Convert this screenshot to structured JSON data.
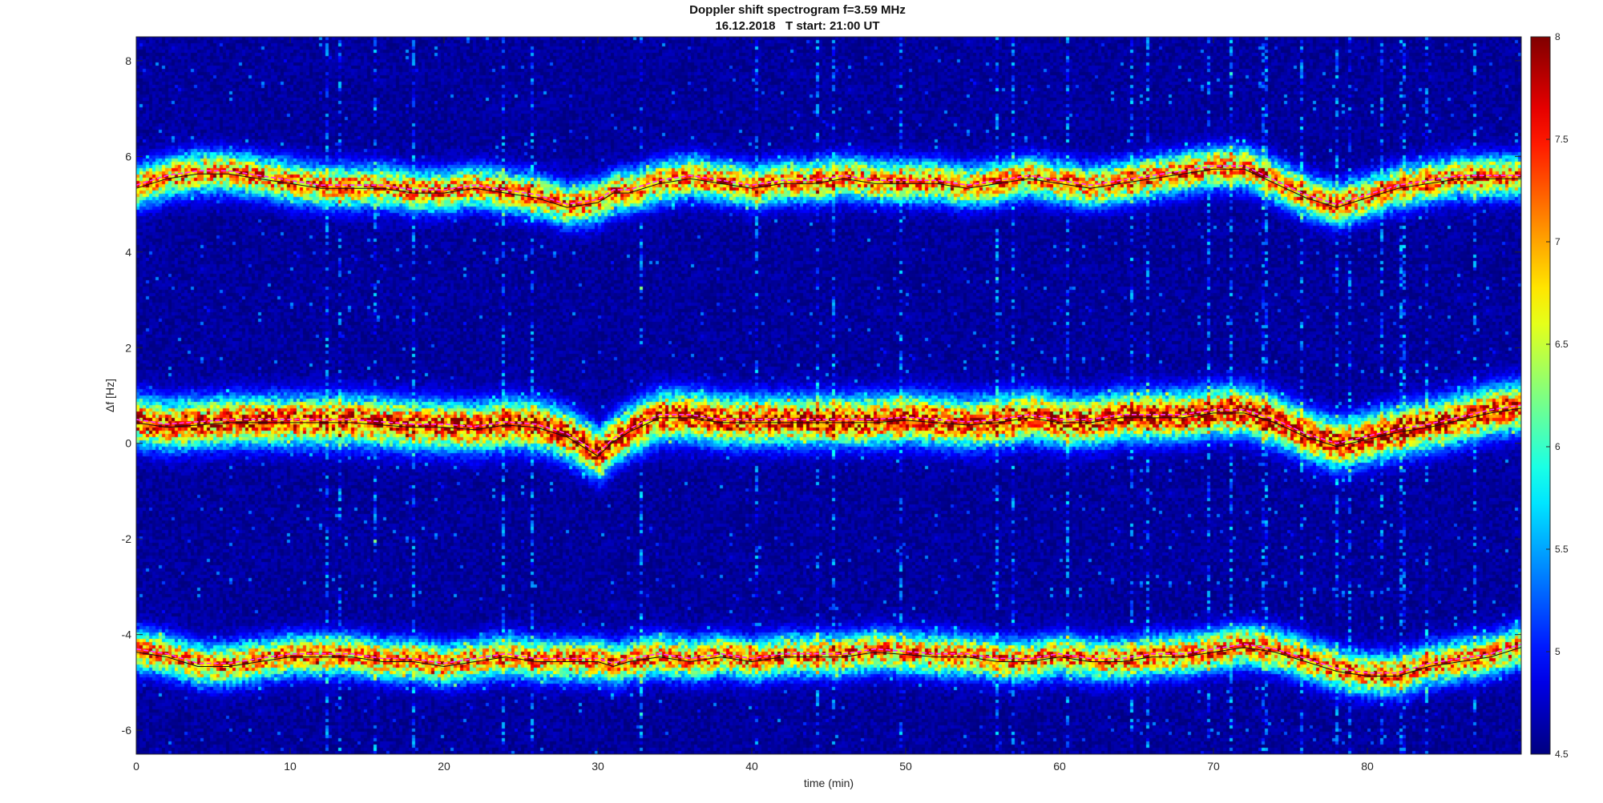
{
  "chart_data": {
    "type": "heatmap",
    "title": "Doppler shift spectrogram f=3.59 MHz",
    "subtitle": "16.12.2018   T start: 21:00 UT",
    "xlabel": "time (min)",
    "ylabel": "Δf [Hz]",
    "xlim": [
      0,
      90
    ],
    "ylim": [
      -6.5,
      8.5
    ],
    "x_ticks": [
      "0",
      "10",
      "20",
      "30",
      "40",
      "50",
      "60",
      "70",
      "80"
    ],
    "y_ticks": [
      "-6",
      "-4",
      "-2",
      "0",
      "2",
      "4",
      "6",
      "8"
    ],
    "colorbar": {
      "colormap": "jet",
      "range": [
        4.5,
        8
      ],
      "ticks": [
        "4.5",
        "5",
        "5.5",
        "6",
        "6.5",
        "7",
        "7.5",
        "8"
      ]
    },
    "background_level": 4.6,
    "grid": false,
    "series": [
      {
        "traces": "upper",
        "x": [
          0,
          2,
          4,
          6,
          8,
          10,
          12,
          14,
          16,
          18,
          20,
          22,
          24,
          26,
          28,
          30,
          31,
          32,
          34,
          36,
          38,
          40,
          42,
          44,
          46,
          48,
          50,
          52,
          54,
          56,
          58,
          60,
          62,
          64,
          66,
          68,
          70,
          72,
          74,
          76,
          78,
          80,
          82,
          84,
          86,
          88,
          90
        ],
        "y": [
          5.4,
          5.6,
          5.7,
          5.7,
          5.6,
          5.5,
          5.4,
          5.4,
          5.4,
          5.3,
          5.3,
          5.4,
          5.3,
          5.2,
          5.0,
          5.1,
          5.3,
          5.3,
          5.5,
          5.6,
          5.5,
          5.4,
          5.5,
          5.5,
          5.6,
          5.5,
          5.5,
          5.5,
          5.4,
          5.5,
          5.6,
          5.5,
          5.4,
          5.5,
          5.6,
          5.7,
          5.8,
          5.8,
          5.5,
          5.2,
          5.0,
          5.2,
          5.4,
          5.5,
          5.6,
          5.6,
          5.6
        ]
      },
      {
        "traces": "middle",
        "x": [
          0,
          2,
          4,
          6,
          8,
          10,
          12,
          14,
          16,
          18,
          20,
          22,
          24,
          26,
          28,
          30,
          31,
          32,
          34,
          36,
          38,
          40,
          42,
          44,
          46,
          48,
          50,
          52,
          54,
          56,
          58,
          60,
          62,
          64,
          66,
          68,
          70,
          72,
          74,
          76,
          78,
          80,
          82,
          84,
          86,
          88,
          90
        ],
        "y": [
          0.5,
          0.4,
          0.45,
          0.5,
          0.5,
          0.5,
          0.5,
          0.5,
          0.45,
          0.4,
          0.4,
          0.35,
          0.45,
          0.4,
          0.2,
          -0.2,
          0.1,
          0.3,
          0.6,
          0.6,
          0.5,
          0.5,
          0.5,
          0.5,
          0.5,
          0.5,
          0.55,
          0.5,
          0.45,
          0.5,
          0.6,
          0.5,
          0.5,
          0.6,
          0.6,
          0.6,
          0.7,
          0.7,
          0.5,
          0.2,
          0.0,
          0.15,
          0.3,
          0.4,
          0.55,
          0.7,
          0.8
        ]
      },
      {
        "traces": "lower",
        "x": [
          0,
          2,
          4,
          6,
          8,
          10,
          12,
          14,
          16,
          18,
          20,
          22,
          24,
          26,
          28,
          30,
          31,
          32,
          34,
          36,
          38,
          40,
          42,
          44,
          46,
          48,
          50,
          52,
          54,
          56,
          58,
          60,
          62,
          64,
          66,
          68,
          70,
          72,
          74,
          76,
          78,
          80,
          82,
          84,
          86,
          88,
          90
        ],
        "y": [
          -4.3,
          -4.4,
          -4.6,
          -4.6,
          -4.5,
          -4.4,
          -4.4,
          -4.4,
          -4.5,
          -4.5,
          -4.6,
          -4.5,
          -4.4,
          -4.5,
          -4.5,
          -4.5,
          -4.6,
          -4.5,
          -4.4,
          -4.5,
          -4.4,
          -4.5,
          -4.4,
          -4.4,
          -4.4,
          -4.3,
          -4.35,
          -4.4,
          -4.4,
          -4.5,
          -4.5,
          -4.4,
          -4.5,
          -4.5,
          -4.4,
          -4.4,
          -4.3,
          -4.2,
          -4.3,
          -4.5,
          -4.7,
          -4.8,
          -4.8,
          -4.6,
          -4.5,
          -4.4,
          -4.2
        ]
      }
    ]
  }
}
